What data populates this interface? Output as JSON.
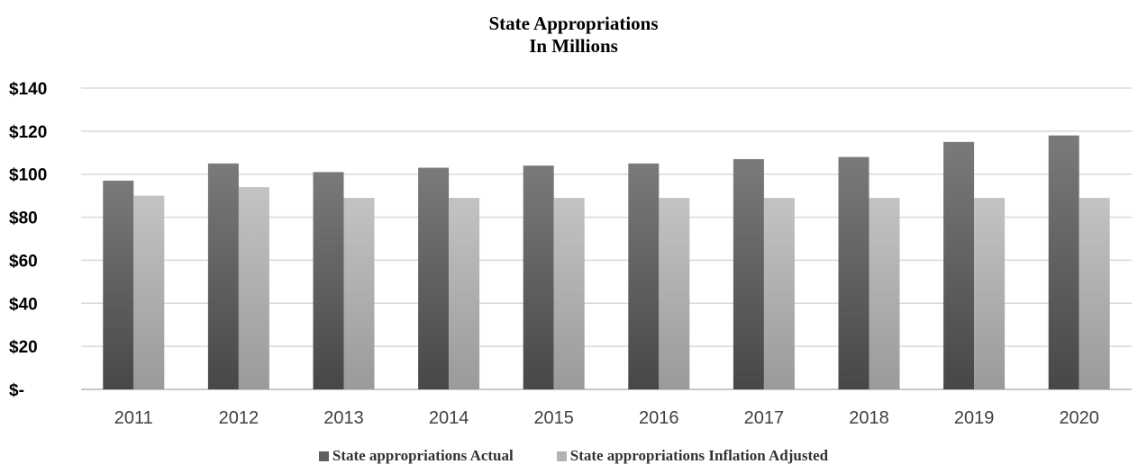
{
  "chart_data": {
    "type": "bar",
    "title": "State Appropriations",
    "subtitle": "In Millions",
    "categories": [
      "2011",
      "2012",
      "2013",
      "2014",
      "2015",
      "2016",
      "2017",
      "2018",
      "2019",
      "2020"
    ],
    "series": [
      {
        "name": "State appropriations Actual",
        "values": [
          97,
          105,
          101,
          103,
          104,
          105,
          107,
          108,
          115,
          118
        ],
        "color": "#5f5f5f"
      },
      {
        "name": "State appropriations Inflation Adjusted",
        "values": [
          90,
          94,
          89,
          89,
          89,
          89,
          89,
          89,
          89,
          89
        ],
        "color": "#b3b3b3"
      }
    ],
    "yticks": [
      "$-",
      "$20",
      "$40",
      "$60",
      "$80",
      "$100",
      "$120",
      "$140"
    ],
    "ylim": [
      0,
      140
    ],
    "grid": true,
    "legend_position": "bottom"
  }
}
